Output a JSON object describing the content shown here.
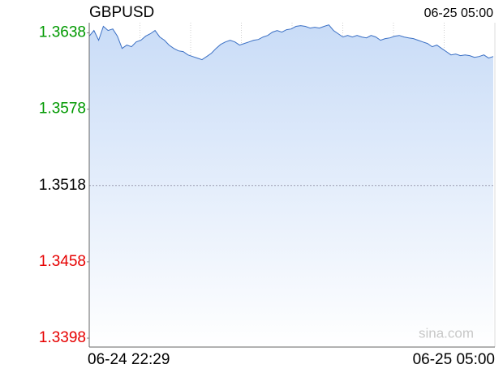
{
  "chart_data": {
    "type": "area",
    "title": "GBPUSD",
    "time": "06-25 05:00",
    "watermark": "sina.com",
    "categories": [
      "06-24 22:29",
      null,
      null,
      null,
      null,
      null,
      null,
      null,
      null,
      null,
      null,
      null,
      null,
      null,
      null,
      null,
      null,
      null,
      null,
      null,
      null,
      null,
      null,
      null,
      null,
      null,
      null,
      null,
      null,
      null,
      null,
      null,
      null,
      null,
      null,
      null,
      null,
      null,
      null,
      null,
      null,
      null,
      null,
      null,
      null,
      null,
      null,
      null,
      null,
      null,
      null,
      null,
      null,
      null,
      null,
      null,
      null,
      null,
      null,
      null,
      null,
      null,
      null,
      null,
      null,
      null,
      null,
      null,
      null,
      null,
      null,
      null,
      null,
      null,
      null,
      null,
      null,
      null,
      null,
      null,
      null,
      null,
      null,
      null,
      null,
      null,
      "06-25 05:00"
    ],
    "series": [
      {
        "name": "GBPUSD",
        "color": "#3a6fc4",
        "values": [
          1.36354,
          1.36399,
          1.36322,
          1.36431,
          1.36399,
          1.36411,
          1.36354,
          1.36258,
          1.36284,
          1.36271,
          1.36309,
          1.36322,
          1.36354,
          1.36373,
          1.36399,
          1.36348,
          1.36322,
          1.36284,
          1.36258,
          1.36239,
          1.36233,
          1.36207,
          1.36194,
          1.36182,
          1.36169,
          1.36194,
          1.3622,
          1.36258,
          1.3629,
          1.36309,
          1.36322,
          1.36309,
          1.36284,
          1.36297,
          1.36309,
          1.36322,
          1.36328,
          1.36348,
          1.3636,
          1.36386,
          1.36399,
          1.36386,
          1.36405,
          1.36411,
          1.36431,
          1.36437,
          1.36431,
          1.36418,
          1.36424,
          1.36418,
          1.36431,
          1.36443,
          1.36399,
          1.36373,
          1.36348,
          1.3636,
          1.36348,
          1.3636,
          1.36348,
          1.36341,
          1.3636,
          1.36348,
          1.36322,
          1.36335,
          1.36341,
          1.36354,
          1.3636,
          1.36348,
          1.36341,
          1.36335,
          1.36322,
          1.36309,
          1.36297,
          1.36271,
          1.36284,
          1.36258,
          1.36233,
          1.36207,
          1.36214,
          1.36201,
          1.36207,
          1.36201,
          1.36188,
          1.36194,
          1.36207,
          1.36182,
          1.36194
        ]
      }
    ],
    "ylim": [
      1.3391,
      1.3646
    ],
    "yticks": [
      1.3398,
      1.3458,
      1.3518,
      1.3578,
      1.3638
    ],
    "up_color": "#009900",
    "down_color": "#e60000",
    "flat_color": "#000000",
    "fill_color": "#c9dcf7"
  }
}
